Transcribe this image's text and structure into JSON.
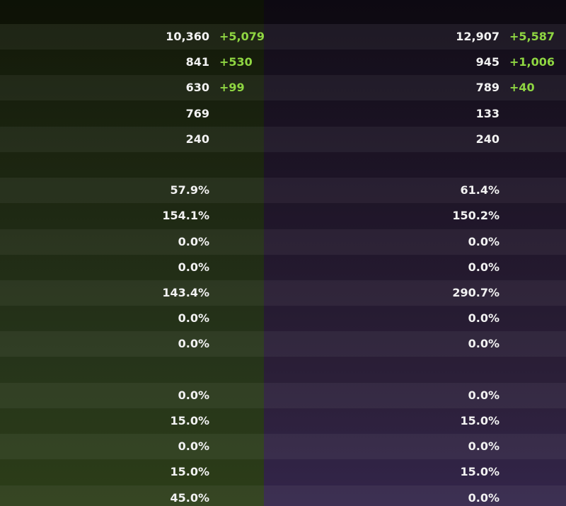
{
  "panels": [
    {
      "groups": [
        {
          "rows": [
            {
              "value": "10,360",
              "bonus": "+5,079"
            },
            {
              "value": "841",
              "bonus": "+530"
            },
            {
              "value": "630",
              "bonus": "+99"
            },
            {
              "value": "769"
            },
            {
              "value": "240"
            }
          ]
        },
        {
          "rows": [
            {
              "value": "57.9%"
            },
            {
              "value": "154.1%"
            },
            {
              "value": "0.0%"
            },
            {
              "value": "0.0%"
            },
            {
              "value": "143.4%"
            },
            {
              "value": "0.0%"
            },
            {
              "value": "0.0%"
            }
          ]
        },
        {
          "rows": [
            {
              "value": "0.0%"
            },
            {
              "value": "15.0%"
            },
            {
              "value": "0.0%"
            },
            {
              "value": "15.0%"
            },
            {
              "value": "45.0%"
            }
          ]
        }
      ]
    },
    {
      "groups": [
        {
          "rows": [
            {
              "value": "12,907",
              "bonus": "+5,587"
            },
            {
              "value": "945",
              "bonus": "+1,006"
            },
            {
              "value": "789",
              "bonus": "+40"
            },
            {
              "value": "133"
            },
            {
              "value": "240"
            }
          ]
        },
        {
          "rows": [
            {
              "value": "61.4%"
            },
            {
              "value": "150.2%"
            },
            {
              "value": "0.0%"
            },
            {
              "value": "0.0%"
            },
            {
              "value": "290.7%"
            },
            {
              "value": "0.0%"
            },
            {
              "value": "0.0%"
            }
          ]
        },
        {
          "rows": [
            {
              "value": "0.0%"
            },
            {
              "value": "15.0%"
            },
            {
              "value": "0.0%"
            },
            {
              "value": "15.0%"
            },
            {
              "value": "0.0%"
            }
          ]
        }
      ]
    }
  ]
}
